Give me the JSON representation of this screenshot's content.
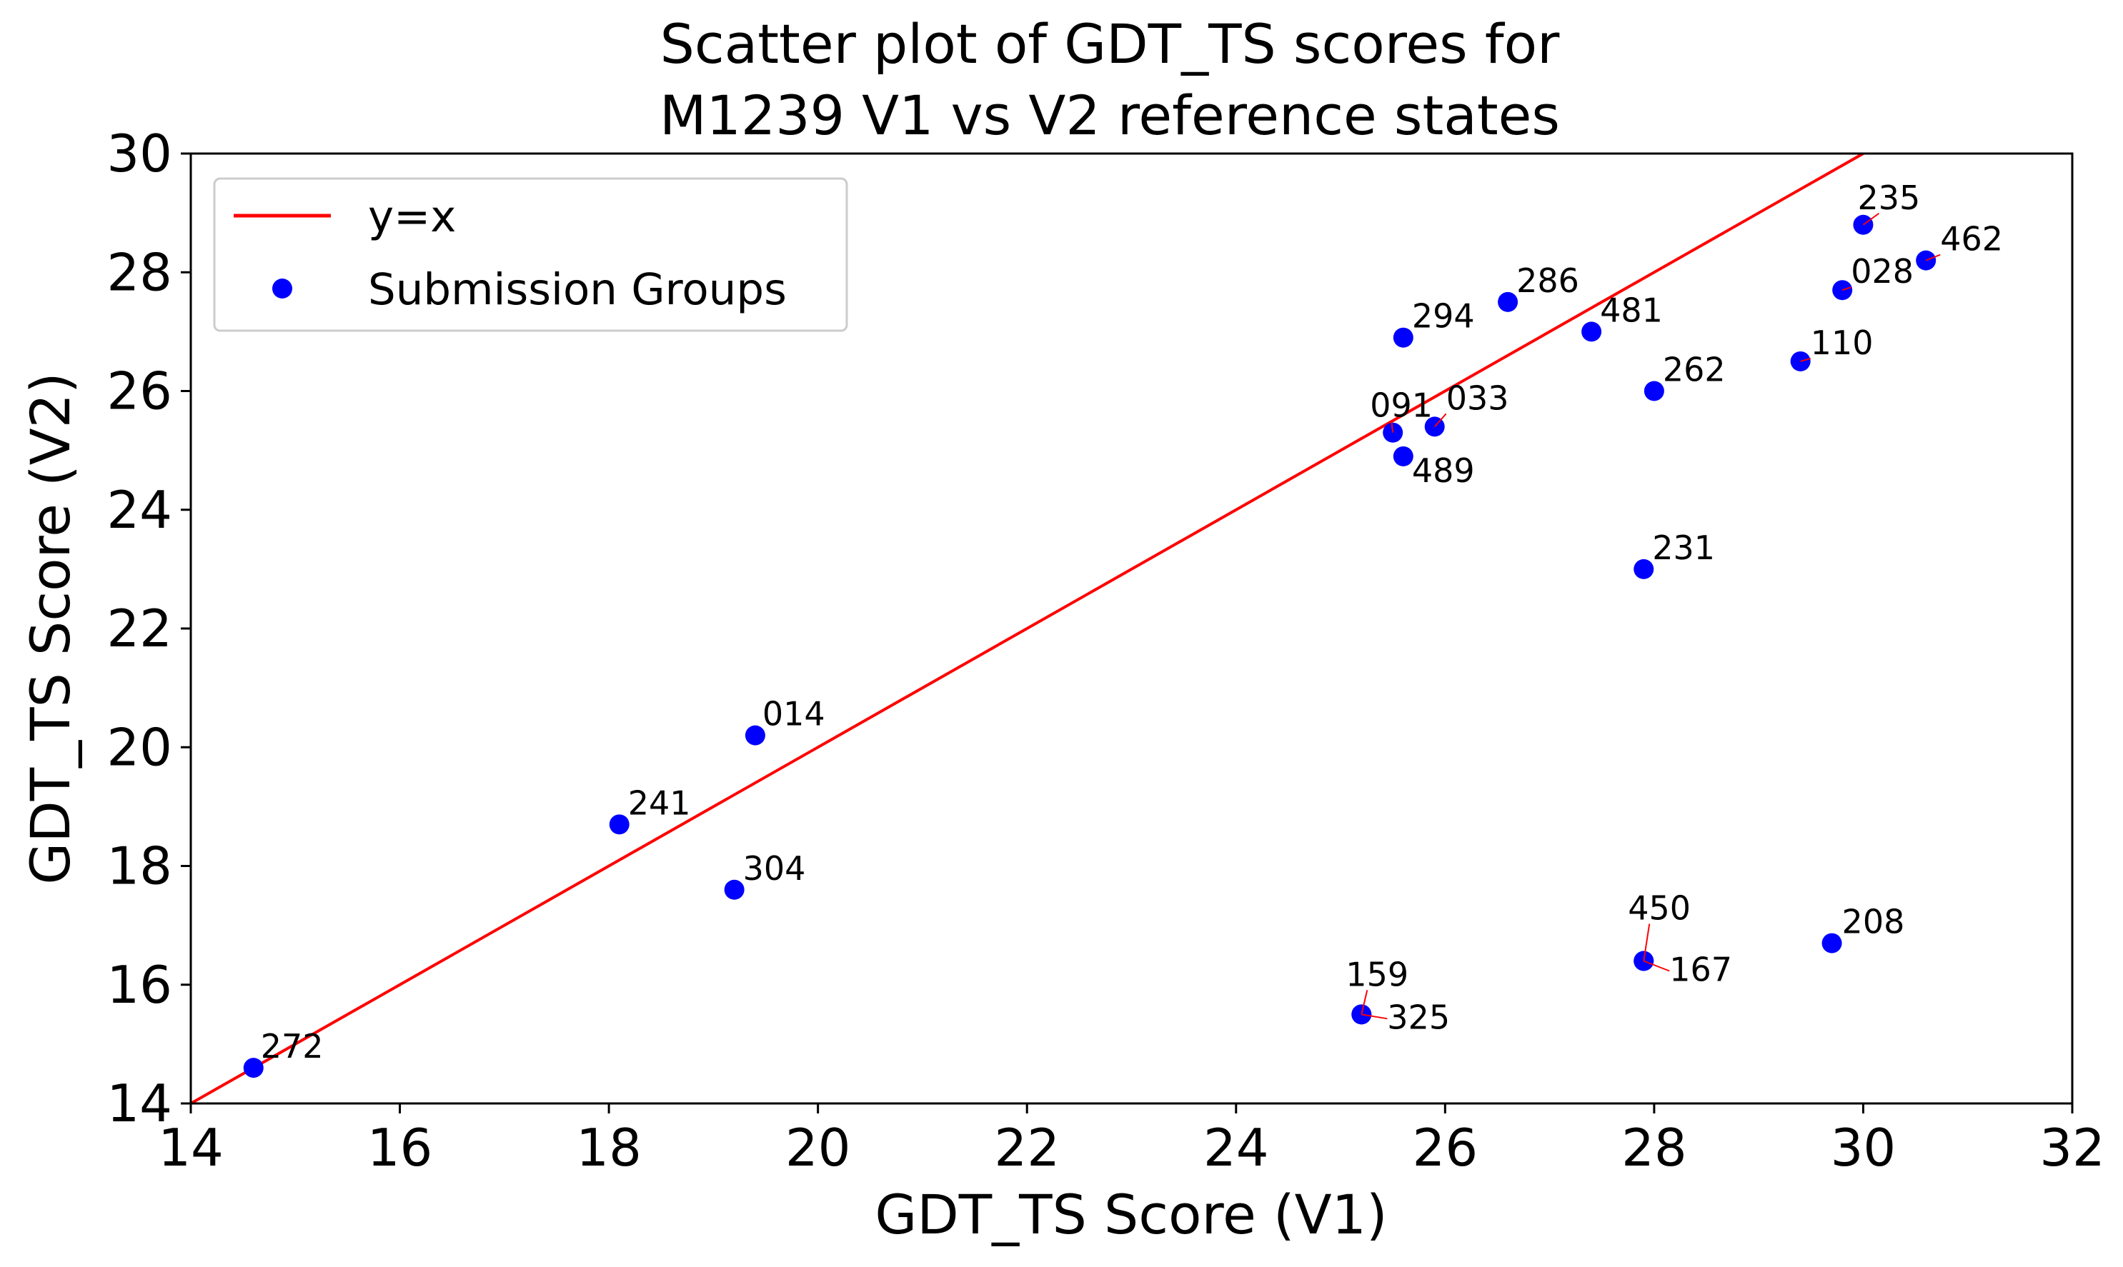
{
  "chart_data": {
    "type": "scatter",
    "title_line1": "Scatter plot of GDT_TS scores for",
    "title_line2": "M1239 V1 vs V2 reference states",
    "xlabel": "GDT_TS Score (V1)",
    "ylabel": "GDT_TS Score (V2)",
    "xlim": [
      14,
      32
    ],
    "ylim": [
      14,
      30
    ],
    "xticks": [
      "14",
      "16",
      "18",
      "20",
      "22",
      "24",
      "26",
      "28",
      "30",
      "32"
    ],
    "yticks": [
      "14",
      "16",
      "18",
      "20",
      "22",
      "24",
      "26",
      "28",
      "30"
    ],
    "grid": false,
    "legend_position": "upper-left",
    "legend": [
      "y=x",
      "Submission Groups"
    ],
    "reference_line": {
      "name": "y=x",
      "color": "#ff0000"
    },
    "point_color": "#0000ff",
    "annotation_arrow_color": "#ff0000",
    "series": [
      {
        "name": "Submission Groups",
        "points": [
          {
            "label": "272",
            "x": 14.6,
            "y": 14.6
          },
          {
            "label": "241",
            "x": 18.1,
            "y": 18.7
          },
          {
            "label": "304",
            "x": 19.2,
            "y": 17.6
          },
          {
            "label": "014",
            "x": 19.4,
            "y": 20.2
          },
          {
            "label": "159",
            "x": 25.2,
            "y": 15.5
          },
          {
            "label": "325",
            "x": 25.2,
            "y": 15.5
          },
          {
            "label": "091",
            "x": 25.5,
            "y": 25.3
          },
          {
            "label": "489",
            "x": 25.6,
            "y": 24.9
          },
          {
            "label": "294",
            "x": 25.6,
            "y": 26.9
          },
          {
            "label": "033",
            "x": 25.9,
            "y": 25.4
          },
          {
            "label": "286",
            "x": 26.6,
            "y": 27.5
          },
          {
            "label": "481",
            "x": 27.4,
            "y": 27.0
          },
          {
            "label": "231",
            "x": 27.9,
            "y": 23.0
          },
          {
            "label": "450",
            "x": 27.9,
            "y": 16.4
          },
          {
            "label": "167",
            "x": 27.9,
            "y": 16.4
          },
          {
            "label": "262",
            "x": 28.0,
            "y": 26.0
          },
          {
            "label": "110",
            "x": 29.4,
            "y": 26.5
          },
          {
            "label": "208",
            "x": 29.7,
            "y": 16.7
          },
          {
            "label": "028",
            "x": 29.8,
            "y": 27.7
          },
          {
            "label": "235",
            "x": 30.0,
            "y": 28.8
          },
          {
            "label": "462",
            "x": 30.6,
            "y": 28.2
          }
        ]
      }
    ]
  }
}
